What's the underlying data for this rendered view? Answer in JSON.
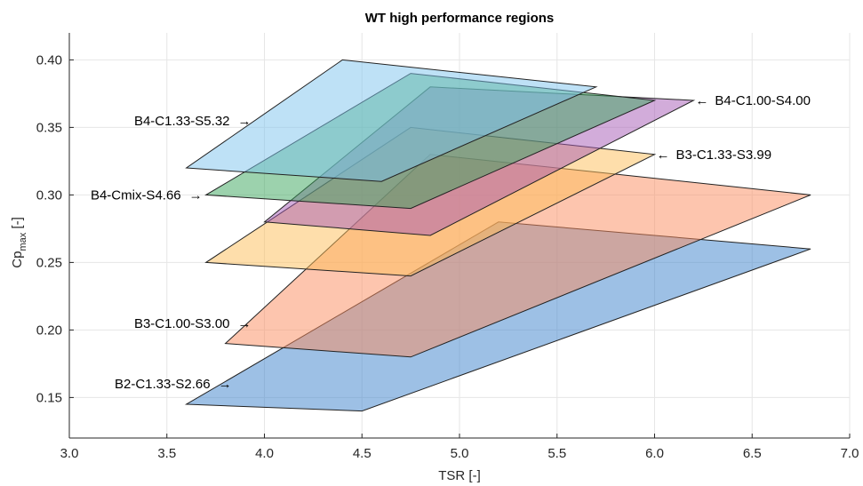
{
  "chart_data": {
    "type": "area",
    "title": "WT high performance regions",
    "xlabel": "TSR [-]",
    "ylabel_main": "Cp",
    "ylabel_sub": "max",
    "ylabel_suffix": " [-]",
    "xlim": [
      3.0,
      7.0
    ],
    "ylim": [
      0.12,
      0.42
    ],
    "xticks": [
      3.0,
      3.5,
      4.0,
      4.5,
      5.0,
      5.5,
      6.0,
      6.5,
      7.0
    ],
    "xtick_labels": [
      "3.0",
      "3.5",
      "4.0",
      "4.5",
      "5.0",
      "5.5",
      "6.0",
      "6.5",
      "7.0"
    ],
    "yticks": [
      0.15,
      0.2,
      0.25,
      0.3,
      0.35,
      0.4
    ],
    "ytick_labels": [
      "0.15",
      "0.20",
      "0.25",
      "0.30",
      "0.35",
      "0.40"
    ],
    "grid": true,
    "series": [
      {
        "name": "B2-C1.33-S2.66",
        "color": "#3b82cc",
        "polygon": [
          [
            3.6,
            0.145
          ],
          [
            4.5,
            0.14
          ],
          [
            6.8,
            0.26
          ],
          [
            5.2,
            0.28
          ]
        ],
        "label_pos": [
          3.85,
          0.16
        ],
        "label_side": "left"
      },
      {
        "name": "B3-C1.00-S3.00",
        "color": "#fb8c5e",
        "polygon": [
          [
            3.8,
            0.19
          ],
          [
            4.75,
            0.18
          ],
          [
            6.8,
            0.3
          ],
          [
            4.85,
            0.33
          ]
        ],
        "label_pos": [
          3.95,
          0.205
        ],
        "label_side": "left"
      },
      {
        "name": "B3-C1.33-S3.99",
        "color": "#fdbd57",
        "polygon": [
          [
            3.7,
            0.25
          ],
          [
            4.75,
            0.24
          ],
          [
            6.0,
            0.33
          ],
          [
            4.75,
            0.35
          ]
        ],
        "label_pos": [
          6.0,
          0.33
        ],
        "label_side": "right"
      },
      {
        "name": "B4-C1.00-S4.00",
        "color": "#a55ab5",
        "polygon": [
          [
            4.0,
            0.28
          ],
          [
            4.85,
            0.27
          ],
          [
            6.2,
            0.37
          ],
          [
            4.85,
            0.38
          ]
        ],
        "label_pos": [
          6.2,
          0.37
        ],
        "label_side": "right"
      },
      {
        "name": "B4-Cmix-S4.66",
        "color": "#3aa65c",
        "polygon": [
          [
            3.7,
            0.3
          ],
          [
            4.75,
            0.29
          ],
          [
            6.0,
            0.37
          ],
          [
            4.75,
            0.39
          ]
        ],
        "label_pos": [
          3.7,
          0.3
        ],
        "label_side": "left"
      },
      {
        "name": "B4-C1.33-S5.32",
        "color": "#7ec4ee",
        "polygon": [
          [
            3.6,
            0.32
          ],
          [
            4.6,
            0.31
          ],
          [
            5.7,
            0.38
          ],
          [
            4.4,
            0.4
          ]
        ],
        "label_pos": [
          3.95,
          0.355
        ],
        "label_side": "left"
      }
    ]
  }
}
